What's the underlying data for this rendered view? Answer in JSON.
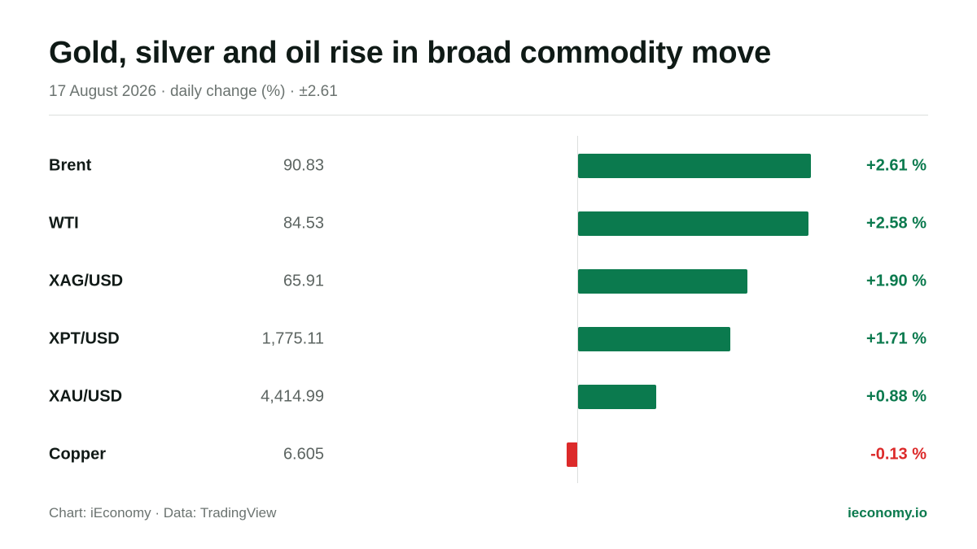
{
  "header": {
    "title": "Gold, silver and oil rise in broad commodity move",
    "subtitle": "17 August 2026 · daily change (%) · ±2.61"
  },
  "footer": {
    "source": "Chart: iEconomy · Data: TradingView",
    "brand": "ieconomy.io"
  },
  "colors": {
    "positive": "#0b7a4e",
    "negative": "#dc2a2a"
  },
  "chart_data": {
    "type": "bar",
    "orientation": "horizontal",
    "categories": [
      "Brent",
      "WTI",
      "XAG/USD",
      "XPT/USD",
      "XAU/USD",
      "Copper"
    ],
    "prices": [
      "90.83",
      "84.53",
      "65.91",
      "1,775.11",
      "4,414.99",
      "6.605"
    ],
    "values": [
      2.61,
      2.58,
      1.9,
      1.71,
      0.88,
      -0.13
    ],
    "value_labels": [
      "+2.61 %",
      "+2.58 %",
      "+1.90 %",
      "+1.71 %",
      "+0.88 %",
      "-0.13 %"
    ],
    "xlim": [
      -2.61,
      2.61
    ],
    "title": "Gold, silver and oil rise in broad commodity move",
    "xlabel": "",
    "ylabel": "",
    "grid": false,
    "legend": "none"
  }
}
